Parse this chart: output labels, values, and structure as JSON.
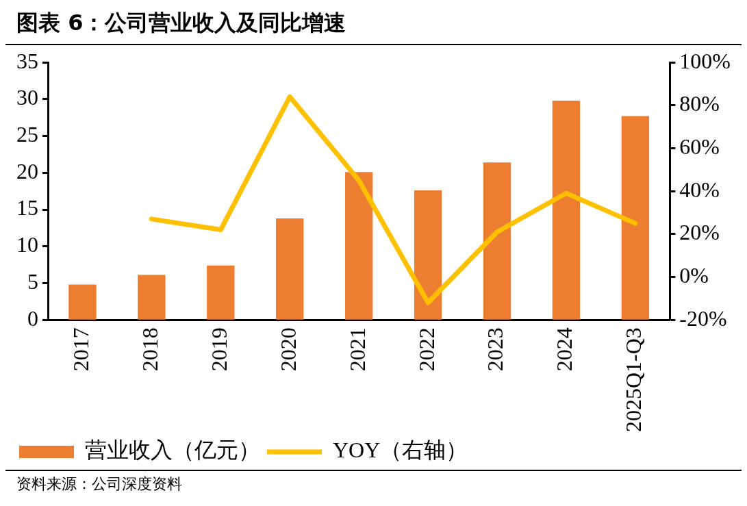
{
  "chart_data": {
    "type": "bar",
    "title": "图表 6：公司营业收入及同比增速",
    "categories": [
      "2017",
      "2018",
      "2019",
      "2020",
      "2021",
      "2022",
      "2023",
      "2024",
      "2025Q1-Q3"
    ],
    "series": [
      {
        "name": "营业收入（亿元）",
        "color": "#ed7d31",
        "values": [
          4.8,
          6.1,
          7.4,
          13.8,
          20.1,
          17.6,
          21.4,
          29.8,
          27.7
        ]
      },
      {
        "name": "YOY（右轴）",
        "type": "line",
        "axis": "y2",
        "color": "#ffc000",
        "values": [
          null,
          27,
          22,
          84,
          45,
          -12,
          21,
          39,
          25
        ]
      }
    ],
    "ylim": [
      0,
      35
    ],
    "yticks": [
      0,
      5,
      10,
      15,
      20,
      25,
      30,
      35
    ],
    "y2lim": [
      -20,
      100
    ],
    "y2ticks": [
      {
        "value": -20,
        "label": "-20%"
      },
      {
        "value": 0,
        "label": "0%"
      },
      {
        "value": 20,
        "label": "20%"
      },
      {
        "value": 40,
        "label": "40%"
      },
      {
        "value": 60,
        "label": "60%"
      },
      {
        "value": 80,
        "label": "80%"
      },
      {
        "value": 100,
        "label": "100%"
      }
    ],
    "grid": false,
    "legend": "bottom",
    "marker": "none",
    "line_style": "solid",
    "annotations": [
      "资料来源：公司深度资料"
    ]
  }
}
